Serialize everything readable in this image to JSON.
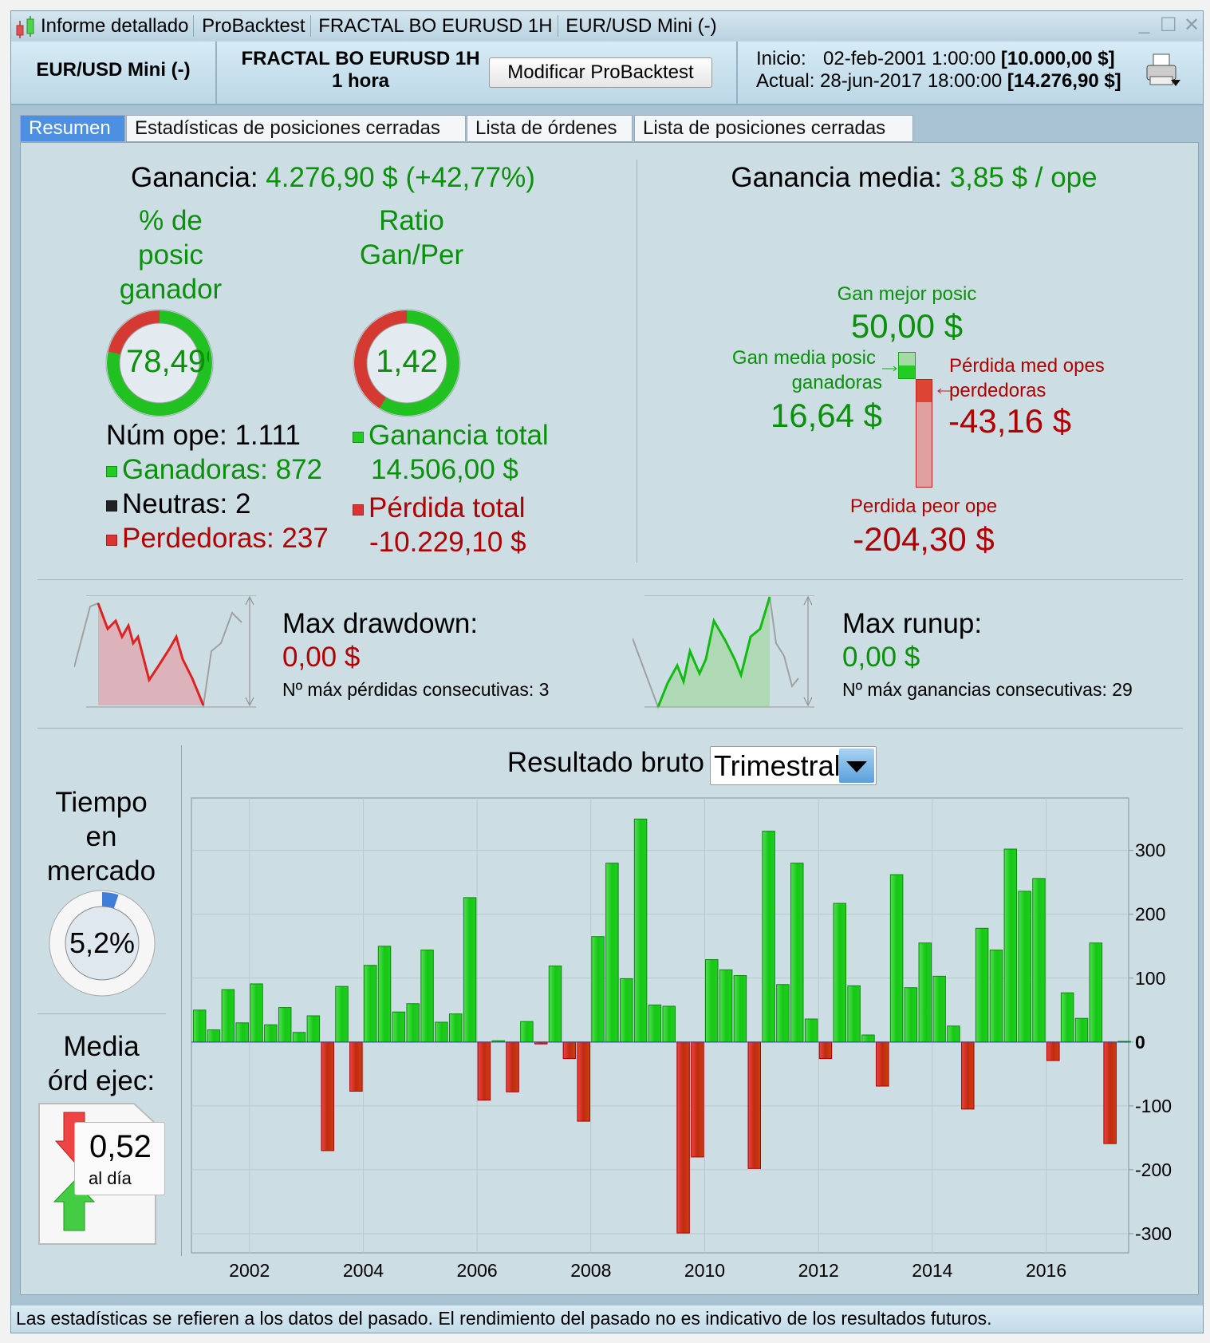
{
  "window": {
    "title_segments": [
      "Informe detallado",
      "ProBacktest",
      "FRACTAL BO EURUSD 1H",
      "EUR/USD Mini (-)"
    ],
    "controls": {
      "minimize": "_",
      "maximize": "☐",
      "close": "✕"
    }
  },
  "header": {
    "instrument": "EUR/USD Mini (-)",
    "strategy_name": "FRACTAL BO EURUSD 1H",
    "timeframe": "1 hora",
    "modify_button": "Modificar ProBacktest",
    "start_label": "Inicio:",
    "start_date": "02-feb-2001 1:00:00",
    "start_capital": "[10.000,00 $]",
    "current_label": "Actual:",
    "current_date": "28-jun-2017 18:00:00",
    "current_capital": "[14.276,90 $]"
  },
  "tabs": [
    {
      "label": "Resumen",
      "active": true
    },
    {
      "label": "Estadísticas de posiciones cerradas",
      "active": false
    },
    {
      "label": "Lista de órdenes",
      "active": false
    },
    {
      "label": "Lista de posiciones cerradas",
      "active": false
    }
  ],
  "summary": {
    "gain_label": "Ganancia:",
    "gain_value": "4.276,90 $",
    "gain_pct": "(+42,77%)",
    "win_pct_title": [
      "% de",
      "posic",
      "ganador"
    ],
    "win_pct_text": "78,49%",
    "win_pct": 78.49,
    "ratio_title": [
      "Ratio",
      "Gan/Per"
    ],
    "ratio_text": "1,42",
    "num_ops": "Núm ope: 1.111",
    "winners": "Ganadoras: 872",
    "neutral": "Neutras: 2",
    "losers": "Perdedoras: 237",
    "total_gain_label": "Ganancia total",
    "total_gain_value": "14.506,00 $",
    "total_gain": 14506.0,
    "total_loss_label": "Pérdida total",
    "total_loss_value": "-10.229,10 $",
    "total_loss": -10229.1
  },
  "average": {
    "label": "Ganancia media:",
    "value": "3,85 $ / ope",
    "best_label": "Gan mejor posic",
    "best_value": "50,00 $",
    "avg_win_label_1": "Gan media posic",
    "avg_win_label_2": "ganadoras",
    "avg_win_value": "16,64 $",
    "avg_loss_label_1": "Pérdida med opes",
    "avg_loss_label_2": "perdedoras",
    "avg_loss_value": "-43,16 $",
    "worst_label": "Perdida peor ope",
    "worst_value": "-204,30 $"
  },
  "drawdown": {
    "label": "Max drawdown:",
    "value": "0,00 $",
    "consecutive": "Nº máx pérdidas consecutivas: 3"
  },
  "runup": {
    "label": "Max runup:",
    "value": "0,00 $",
    "consecutive": "Nº máx ganancias consecutivas: 29"
  },
  "time_in_market": {
    "title": [
      "Tiempo",
      "en",
      "mercado"
    ],
    "text": "5,2%",
    "pct": 5.2
  },
  "orders": {
    "title": [
      "Media",
      "órd ejec:"
    ],
    "value": "0,52",
    "unit": "al día"
  },
  "colors": {
    "gain": "#0a900a",
    "loss": "#b00000",
    "bar_green": "#22cc22",
    "bar_red": "#d8342a",
    "accent_tab": "#4d8fe0",
    "market_blue": "#3f7fd8"
  },
  "chart_data": {
    "type": "bar",
    "title": "Resultado bruto",
    "period_select": "Trimestral",
    "xlabel": "",
    "ylabel": "",
    "x_tick_labels": [
      "2002",
      "2004",
      "2006",
      "2008",
      "2010",
      "2012",
      "2014",
      "2016"
    ],
    "y_tick_labels": [
      "300",
      "200",
      "100",
      "0",
      "-100",
      "-200",
      "-300"
    ],
    "y_ticks": [
      300,
      200,
      100,
      0,
      -100,
      -200,
      -300
    ],
    "x_ticks": [
      2002,
      2004,
      2006,
      2008,
      2010,
      2012,
      2014,
      2016
    ],
    "xlim": [
      2000.98,
      2017.45
    ],
    "ylim": [
      -330,
      382
    ],
    "grid": true,
    "start": "2001 Q1",
    "categories": [
      "2001 Q1",
      "2001 Q2",
      "2001 Q3",
      "2001 Q4",
      "2002 Q1",
      "2002 Q2",
      "2002 Q3",
      "2002 Q4",
      "2003 Q1",
      "2003 Q2",
      "2003 Q3",
      "2003 Q4",
      "2004 Q1",
      "2004 Q2",
      "2004 Q3",
      "2004 Q4",
      "2005 Q1",
      "2005 Q2",
      "2005 Q3",
      "2005 Q4",
      "2006 Q1",
      "2006 Q2",
      "2006 Q3",
      "2006 Q4",
      "2007 Q1",
      "2007 Q2",
      "2007 Q3",
      "2007 Q4",
      "2008 Q1",
      "2008 Q2",
      "2008 Q3",
      "2008 Q4",
      "2009 Q1",
      "2009 Q2",
      "2009 Q3",
      "2009 Q4",
      "2010 Q1",
      "2010 Q2",
      "2010 Q3",
      "2010 Q4",
      "2011 Q1",
      "2011 Q2",
      "2011 Q3",
      "2011 Q4",
      "2012 Q1",
      "2012 Q2",
      "2012 Q3",
      "2012 Q4",
      "2013 Q1",
      "2013 Q2",
      "2013 Q3",
      "2013 Q4",
      "2014 Q1",
      "2014 Q2",
      "2014 Q3",
      "2014 Q4",
      "2015 Q1",
      "2015 Q2",
      "2015 Q3",
      "2015 Q4",
      "2016 Q1",
      "2016 Q2",
      "2016 Q3",
      "2016 Q4",
      "2017 Q1",
      "2017 Q2"
    ],
    "values": [
      50,
      19,
      82,
      30,
      91,
      27,
      54,
      15,
      41,
      -170,
      87,
      -77,
      120,
      150,
      47,
      60,
      144,
      31,
      44,
      226,
      -91,
      2,
      -78,
      32,
      -3,
      119,
      -26,
      -124,
      165,
      280,
      99,
      349,
      58,
      56,
      -299,
      -180,
      129,
      113,
      104,
      -198,
      330,
      90,
      280,
      36,
      -26,
      217,
      88,
      11,
      -69,
      262,
      85,
      155,
      103,
      25,
      -105,
      178,
      144,
      302,
      236,
      256,
      -29,
      77,
      37,
      155,
      -159,
      1
    ]
  },
  "status_bar": "Las estadísticas se refieren a los datos del pasado. El rendimiento del pasado no es indicativo de los resultados futuros."
}
